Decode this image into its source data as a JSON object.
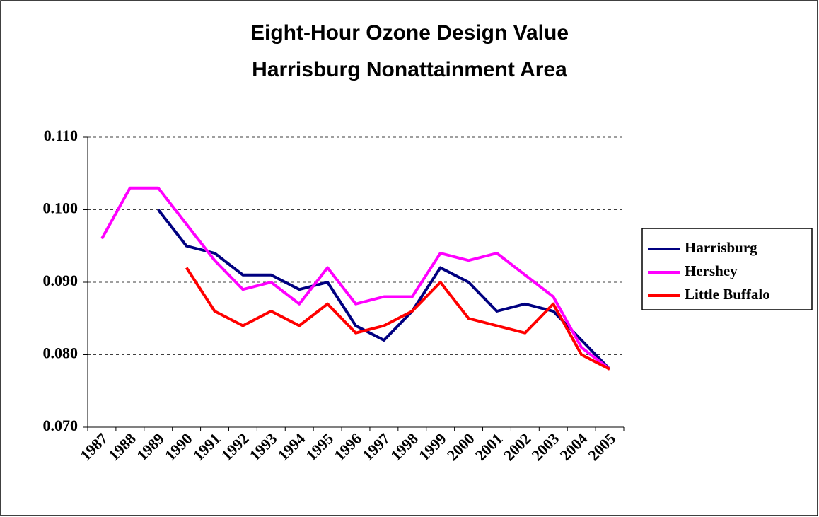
{
  "chart_data": {
    "type": "line",
    "title": [
      "Eight-Hour Ozone Design Value",
      "Harrisburg Nonattainment Area"
    ],
    "categories": [
      "1987",
      "1988",
      "1989",
      "1990",
      "1991",
      "1992",
      "1993",
      "1994",
      "1995",
      "1996",
      "1997",
      "1998",
      "1999",
      "2000",
      "2001",
      "2002",
      "2003",
      "2004",
      "2005"
    ],
    "series": [
      {
        "name": "Harrisburg",
        "color": "#000080",
        "values": [
          null,
          null,
          0.1,
          0.095,
          0.094,
          0.091,
          0.091,
          0.089,
          0.09,
          0.084,
          0.082,
          0.086,
          0.092,
          0.09,
          0.086,
          0.087,
          0.086,
          0.082,
          0.078
        ]
      },
      {
        "name": "Hershey",
        "color": "#ff00ff",
        "values": [
          0.096,
          0.103,
          0.103,
          0.098,
          0.093,
          0.089,
          0.09,
          0.087,
          0.092,
          0.087,
          0.088,
          0.088,
          0.094,
          0.093,
          0.094,
          0.091,
          0.088,
          0.081,
          0.078
        ]
      },
      {
        "name": "Little Buffalo",
        "color": "#ff0000",
        "values": [
          null,
          null,
          null,
          0.092,
          0.086,
          0.084,
          0.086,
          0.084,
          0.087,
          0.083,
          0.084,
          0.086,
          0.09,
          0.085,
          0.084,
          0.083,
          0.087,
          0.08,
          0.078
        ]
      }
    ],
    "ylim": [
      0.07,
      0.11
    ],
    "yticks": [
      {
        "value": 0.07,
        "label": "0.070"
      },
      {
        "value": 0.08,
        "label": "0.080"
      },
      {
        "value": 0.09,
        "label": "0.090"
      },
      {
        "value": 0.1,
        "label": "0.100"
      },
      {
        "value": 0.11,
        "label": "0.110"
      }
    ],
    "grid": true,
    "legend": "right"
  }
}
